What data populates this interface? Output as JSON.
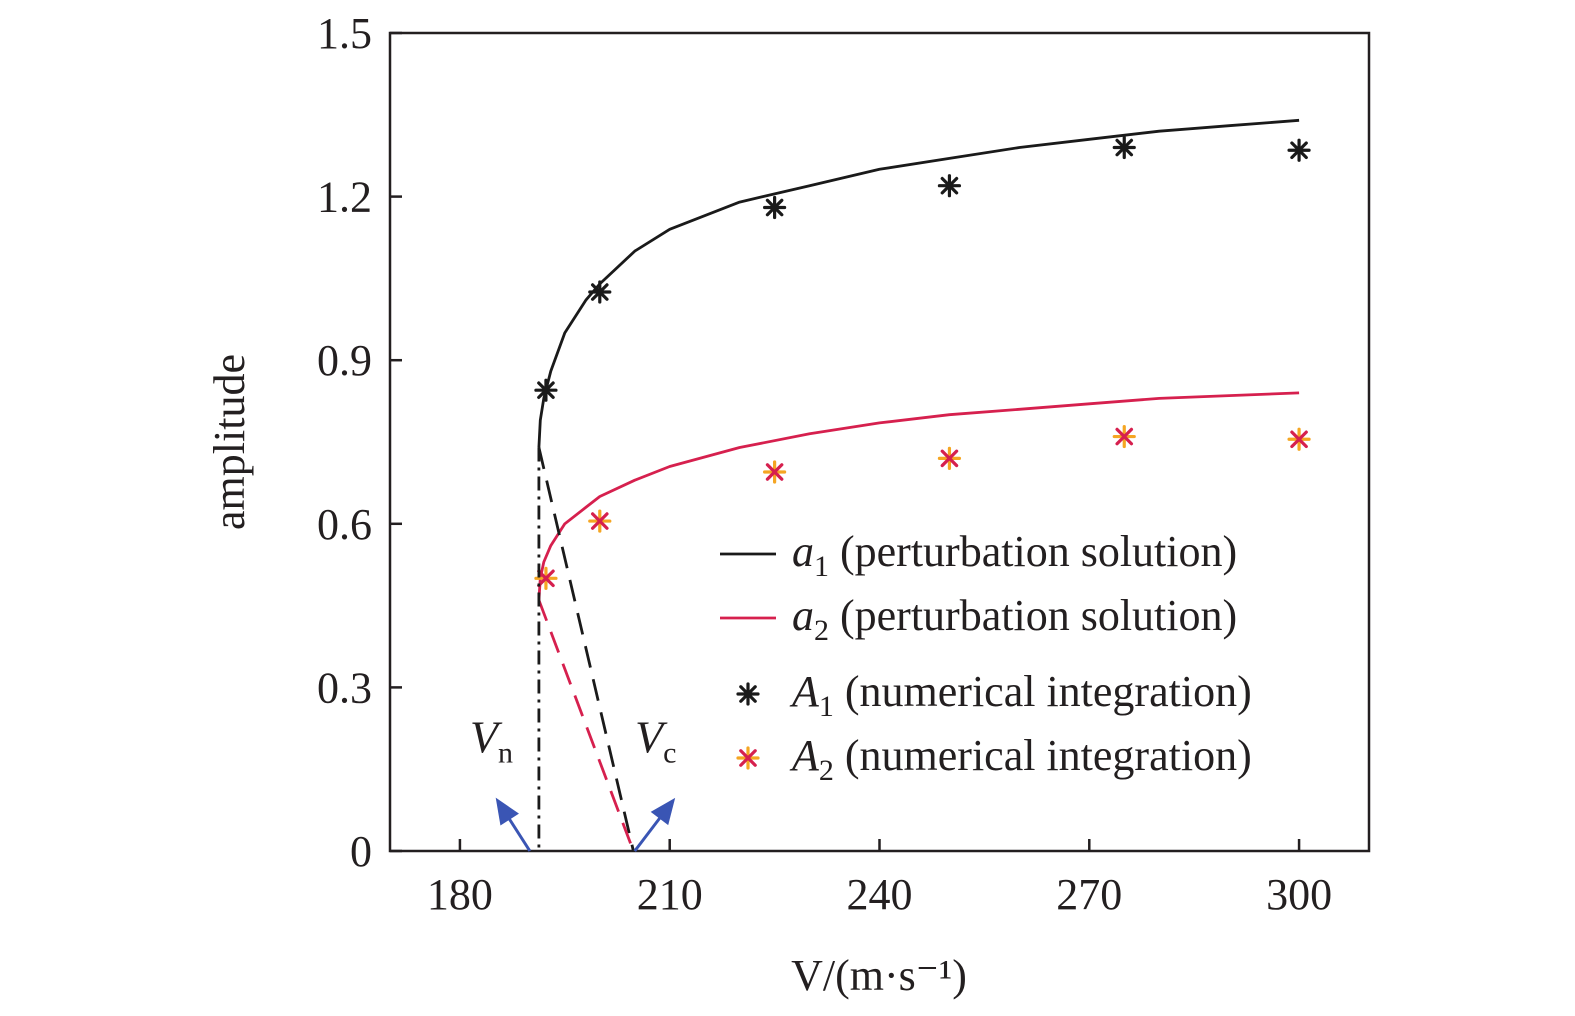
{
  "chart_data": {
    "type": "line",
    "title": "",
    "xlabel": "V/(m·s⁻¹)",
    "ylabel": "amplitude",
    "xlim": [
      170,
      310
    ],
    "ylim": [
      0,
      1.5
    ],
    "x_ticks": [
      "180",
      "210",
      "240",
      "270",
      "300"
    ],
    "y_ticks": [
      "0",
      "0.3",
      "0.6",
      "0.9",
      "1.2",
      "1.5"
    ],
    "x_tick_values": [
      180,
      210,
      240,
      270,
      300
    ],
    "y_tick_values": [
      0,
      0.3,
      0.6,
      0.9,
      1.2,
      1.5
    ],
    "grid": false,
    "legend_position": "bottom-right",
    "series": [
      {
        "name": "a1 (perturbation solution)",
        "legend": {
          "symbol": "a",
          "subscript": "1",
          "text": " (perturbation solution)"
        },
        "kind": "line",
        "color": "#1a1a1a",
        "x": [
          191.3,
          191.5,
          192,
          193,
          195,
          198,
          200,
          205,
          210,
          220,
          230,
          240,
          250,
          260,
          270,
          280,
          290,
          300
        ],
        "y": [
          0.74,
          0.79,
          0.83,
          0.88,
          0.95,
          1.01,
          1.04,
          1.1,
          1.14,
          1.19,
          1.22,
          1.25,
          1.27,
          1.29,
          1.305,
          1.32,
          1.33,
          1.34
        ]
      },
      {
        "name": "a2 (perturbation solution)",
        "legend": {
          "symbol": "a",
          "subscript": "2",
          "text": " (perturbation solution)"
        },
        "kind": "line",
        "color": "#d6204e",
        "x": [
          191.3,
          191.5,
          192,
          193,
          195,
          198,
          200,
          205,
          210,
          220,
          230,
          240,
          250,
          260,
          270,
          280,
          290,
          300
        ],
        "y": [
          0.46,
          0.5,
          0.53,
          0.56,
          0.6,
          0.63,
          0.65,
          0.68,
          0.705,
          0.74,
          0.765,
          0.785,
          0.8,
          0.81,
          0.82,
          0.83,
          0.835,
          0.84
        ]
      },
      {
        "name": "A1 (numerical integration)",
        "legend": {
          "symbol": "A",
          "subscript": "1",
          "text": " (numerical integration)"
        },
        "kind": "scatter",
        "color": "#1a1a1a",
        "x": [
          192.3,
          200,
          225,
          250,
          275,
          300
        ],
        "y": [
          0.845,
          1.025,
          1.18,
          1.22,
          1.29,
          1.285
        ]
      },
      {
        "name": "A2 (numerical integration)",
        "legend": {
          "symbol": "A",
          "subscript": "2",
          "text": " (numerical integration)"
        },
        "kind": "scatter",
        "color": "#d6204e",
        "accent": "#f5a623",
        "x": [
          192.3,
          200,
          225,
          250,
          275,
          300
        ],
        "y": [
          0.5,
          0.605,
          0.695,
          0.72,
          0.76,
          0.755
        ]
      },
      {
        "kind": "dashed",
        "color": "#1a1a1a",
        "x": [
          191.3,
          204.8
        ],
        "y": [
          0.74,
          0.0
        ]
      },
      {
        "kind": "dashed",
        "color": "#d6204e",
        "x": [
          191.3,
          204.8
        ],
        "y": [
          0.46,
          0.0
        ]
      },
      {
        "kind": "dashdot",
        "color": "#1a1a1a",
        "x": [
          191.3,
          191.3
        ],
        "y": [
          0.74,
          0.0
        ]
      }
    ],
    "annotations": [
      {
        "symbol": "V",
        "subscript": "n",
        "arrow_color": "#3a55b4",
        "points_to_x": 190,
        "label_x": 184.5,
        "label_y": 0.17
      },
      {
        "symbol": "V",
        "subscript": "c",
        "arrow_color": "#3a55b4",
        "points_to_x": 205,
        "label_x": 208,
        "label_y": 0.17
      }
    ]
  }
}
